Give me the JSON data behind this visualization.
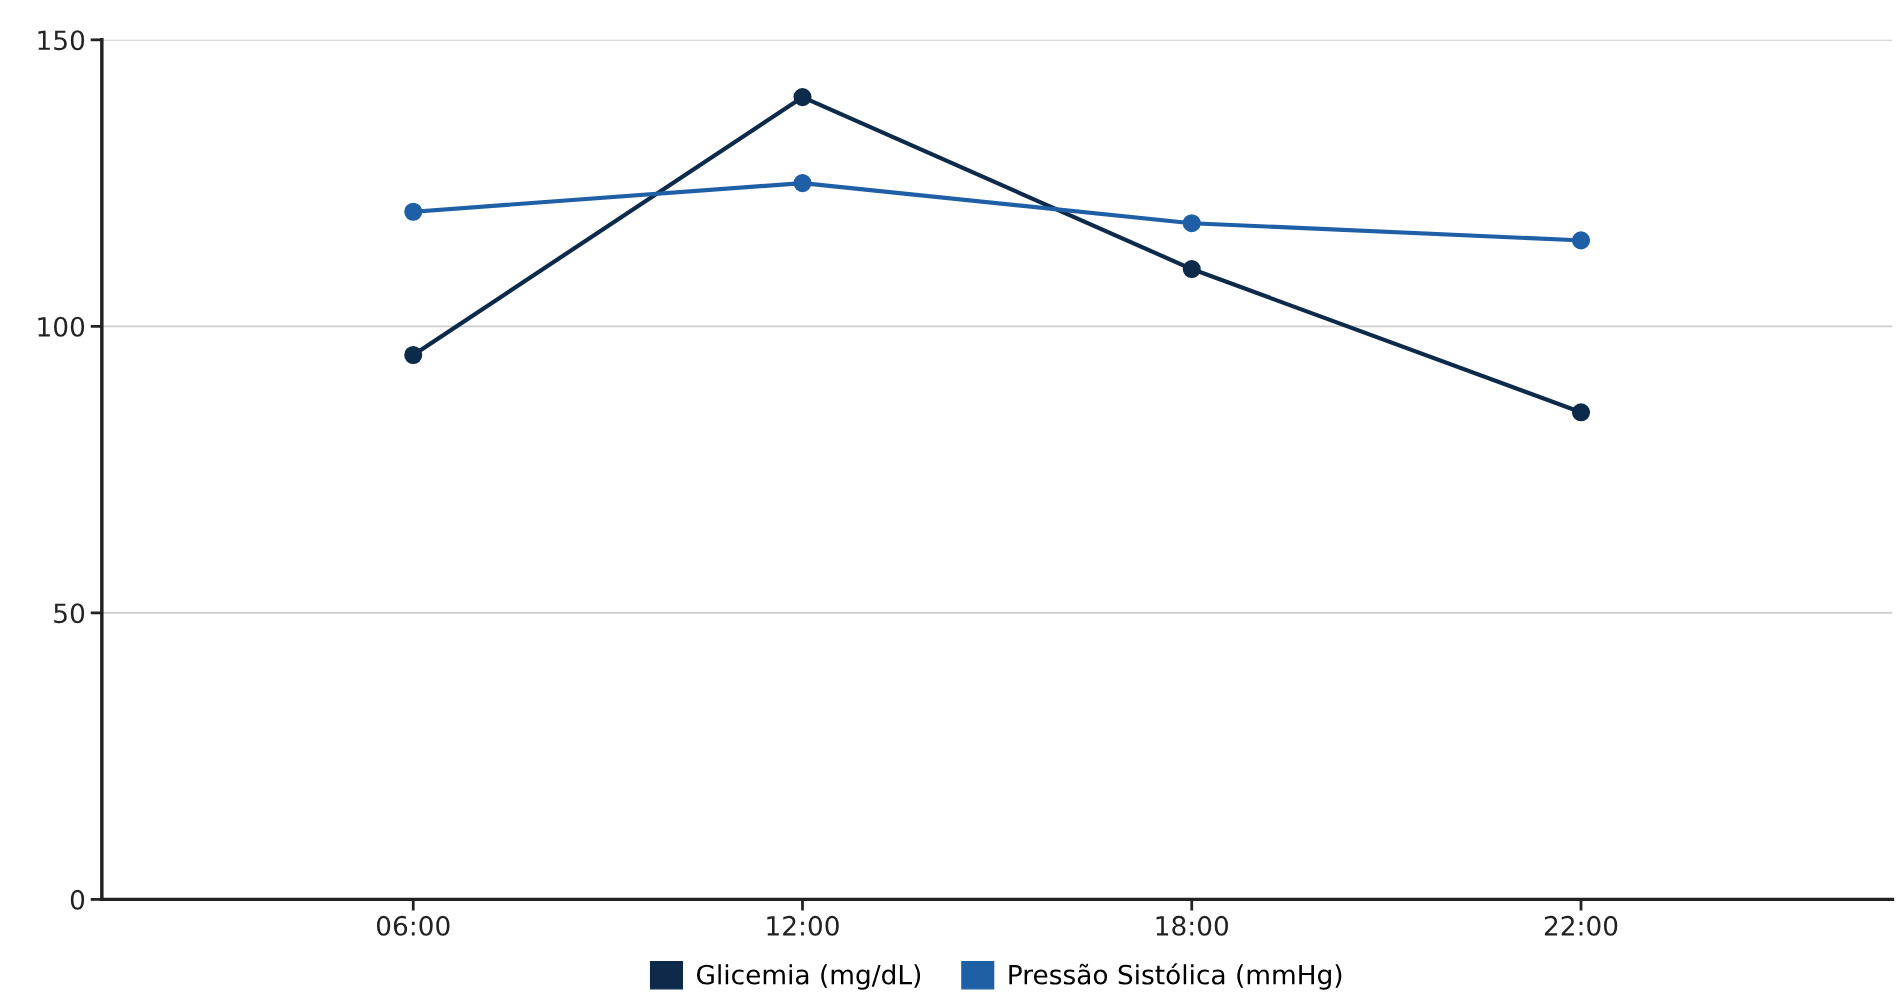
{
  "chart_data": {
    "type": "line",
    "categories": [
      "06:00",
      "12:00",
      "18:00",
      "22:00"
    ],
    "series": [
      {
        "name": "Glicemia (mg/dL)",
        "color": "#0d2a4a",
        "values": [
          95,
          140,
          110,
          85
        ]
      },
      {
        "name": "Pressão Sistólica (mmHg)",
        "color": "#1f5fa6",
        "values": [
          120,
          125,
          118,
          115
        ]
      }
    ],
    "ylim": [
      0,
      150
    ],
    "yticks": [
      0,
      50,
      100,
      150
    ],
    "grid": "y",
    "legend": "bottom",
    "marker": "circle",
    "line_style": "solid"
  }
}
